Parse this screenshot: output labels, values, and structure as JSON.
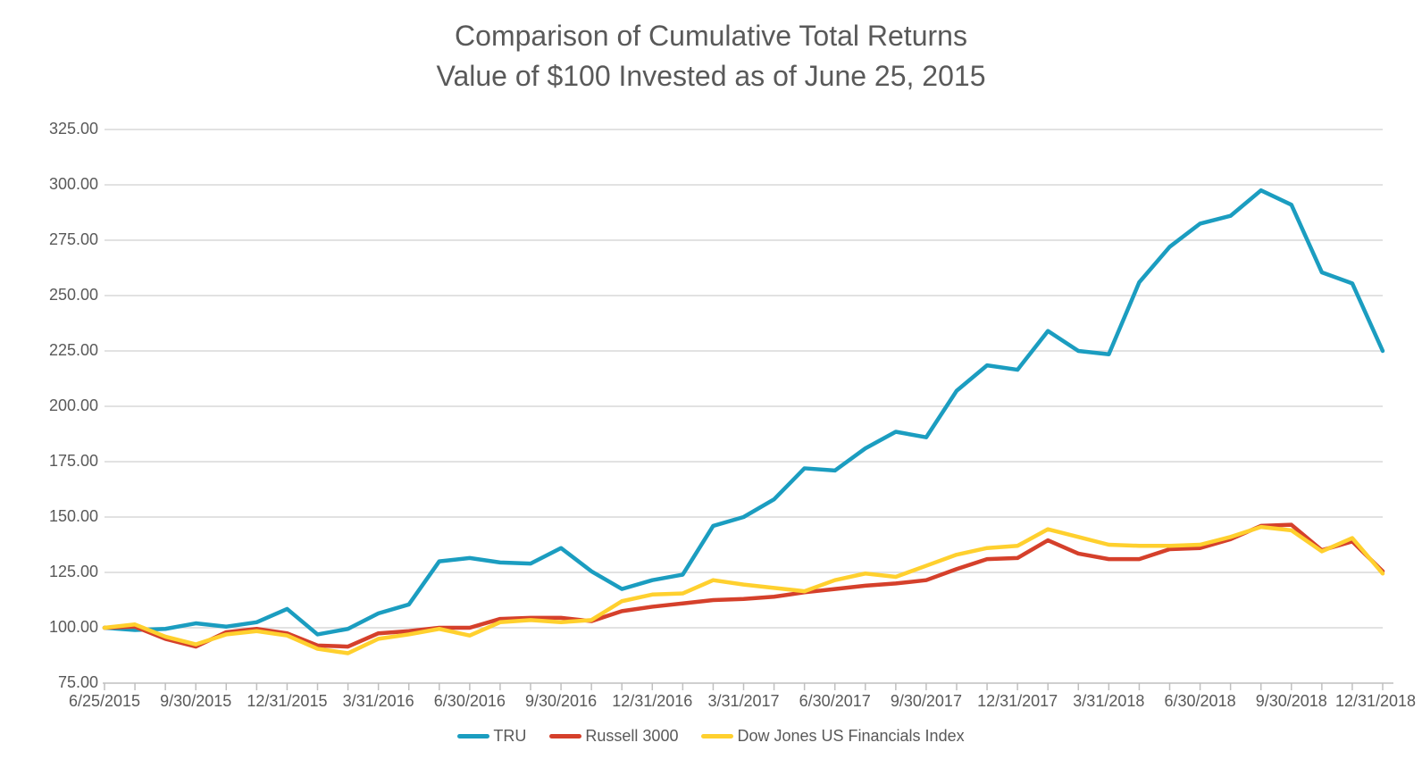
{
  "title": {
    "line1": "Comparison of Cumulative Total Returns",
    "line2": "Value of $100 Invested as of June 25, 2015"
  },
  "colors": {
    "tru_line": "#1B9DC0",
    "russell_line": "#D5402B",
    "dowjones_line": "#FFD02E",
    "gridline": "#D9D9D9",
    "axis_line": "#BFBFBF",
    "text": "#595959"
  },
  "chart_data": {
    "type": "line",
    "title": "Comparison of Cumulative Total Returns",
    "subtitle": "Value of $100 Invested as of June 25, 2015",
    "grid": true,
    "legend_position": "bottom",
    "y_axis": {
      "min": 75,
      "max": 325,
      "step": 25,
      "tick_labels": [
        "325.00",
        "300.00",
        "275.00",
        "250.00",
        "225.00",
        "200.00",
        "175.00",
        "150.00",
        "125.00",
        "100.00",
        "75.00"
      ]
    },
    "x_axis": {
      "labels": [
        "6/25/2015",
        "9/30/2015",
        "12/31/2015",
        "3/31/2016",
        "6/30/2016",
        "9/30/2016",
        "12/31/2016",
        "3/31/2017",
        "6/30/2017",
        "9/30/2017",
        "12/31/2017",
        "3/31/2018",
        "6/30/2018",
        "9/30/2018",
        "12/31/2018"
      ],
      "label_every_n_points": 3,
      "points_per_series": 43,
      "point_frequency": "monthly"
    },
    "series": [
      {
        "name": "TRU",
        "color": "#1B9DC0",
        "values": [
          100,
          99,
          99.5,
          102,
          100.5,
          102.5,
          108.5,
          97,
          99.5,
          106.5,
          110.5,
          130,
          131.5,
          129.5,
          129,
          136,
          125.5,
          117.5,
          121.5,
          124,
          146,
          150,
          158,
          172,
          171,
          181,
          188.5,
          186,
          207,
          218.5,
          216.5,
          234,
          225,
          223.5,
          256,
          272,
          282.5,
          286,
          297.5,
          291,
          260.5,
          255.5,
          225
        ]
      },
      {
        "name": "Russell 3000",
        "color": "#D5402B",
        "values": [
          100,
          100.5,
          95,
          91.5,
          98,
          99.5,
          97.5,
          92,
          91.5,
          97.5,
          98.5,
          100,
          100,
          104,
          104.5,
          104.5,
          103,
          107.5,
          109.5,
          111,
          112.5,
          113,
          114,
          116,
          117.5,
          119,
          120,
          121.5,
          126.5,
          131,
          131.5,
          139.5,
          133.5,
          131,
          131,
          135.5,
          136,
          140,
          146,
          146.5,
          135,
          139,
          125.5
        ]
      },
      {
        "name": "Dow Jones US Financials Index",
        "color": "#FFD02E",
        "values": [
          100,
          101.5,
          96,
          92.5,
          97,
          98.5,
          96.5,
          90.5,
          88.5,
          95,
          97,
          99.5,
          96.5,
          102.5,
          103.5,
          102.5,
          103.5,
          112,
          115,
          115.5,
          121.5,
          119.5,
          118,
          116.5,
          121.5,
          124.5,
          123,
          128,
          133,
          136,
          137,
          144.5,
          141,
          137.5,
          137,
          137,
          137.5,
          141,
          145.5,
          144,
          134.5,
          140.5,
          124.5
        ]
      }
    ]
  }
}
